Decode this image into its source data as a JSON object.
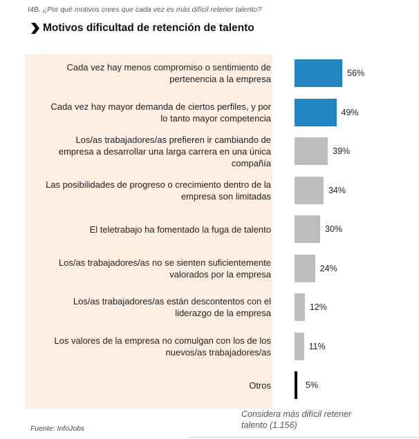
{
  "question": "I4B. ¿Por qué motivos crees que cada vez es más difícil retener talento?",
  "title": "Motivos dificultad de retención de talento",
  "footnote": "Considera más difícil retener talento (1.156)",
  "source": "Fuente: InfoJobs",
  "colors": {
    "highlight": "#2485c4",
    "default": "#bdbdbd",
    "other": "#000000",
    "panel": "#fdeee3"
  },
  "chart_data": {
    "type": "bar",
    "orientation": "horizontal",
    "title": "Motivos dificultad de retención de talento",
    "value_suffix": "%",
    "xlim": [
      0,
      100
    ],
    "grid": false,
    "categories": [
      "Cada vez hay menos compromiso o sentimiento de pertenencia a la empresa",
      "Cada vez hay mayor demanda de ciertos perfiles, y por lo tanto mayor competencia",
      "Los/as trabajadores/as prefieren ir cambiando de empresa a desarrollar una larga carrera en una única compañía",
      "Las posibilidades de progreso o crecimiento dentro de la empresa son limitadas",
      "El teletrabajo ha fomentado la fuga de talento",
      "Los/as trabajadores/as no se sienten suficientemente valorados por la empresa",
      "Los/as trabajadores/as están descontentos con el liderazgo de la empresa",
      "Los valores de la empresa no comulgan con los de los nuevos/as trabajadores/as",
      "Otros"
    ],
    "values": [
      56,
      49,
      39,
      34,
      30,
      24,
      12,
      11,
      5
    ],
    "value_labels": [
      "56%",
      "49%",
      "39%",
      "34%",
      "30%",
      "24%",
      "12%",
      "11%",
      "5%"
    ],
    "bar_colors": [
      "#2485c4",
      "#2485c4",
      "#bdbdbd",
      "#bdbdbd",
      "#bdbdbd",
      "#bdbdbd",
      "#bdbdbd",
      "#bdbdbd",
      "#000000"
    ]
  }
}
